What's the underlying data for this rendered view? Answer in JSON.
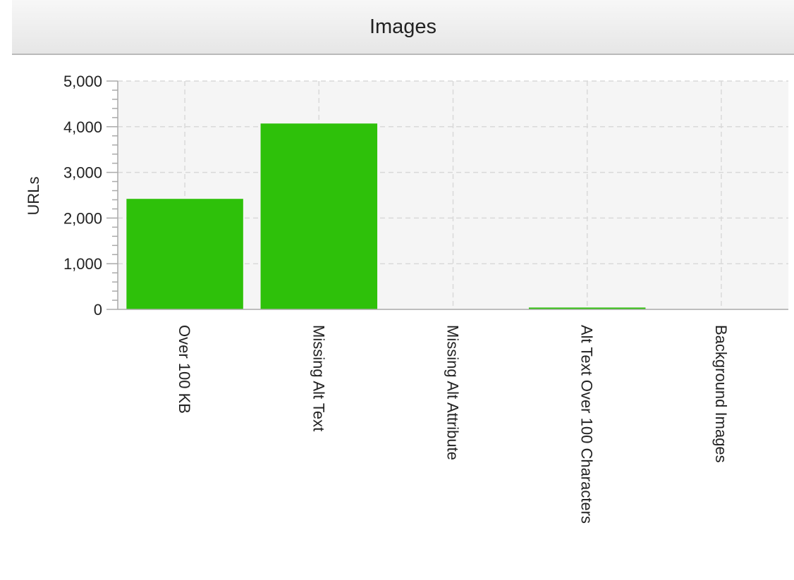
{
  "panel": {
    "title": "Images"
  },
  "chart_data": {
    "type": "bar",
    "title": "Images",
    "xlabel": "",
    "ylabel": "URLs",
    "categories": [
      "Over 100 KB",
      "Missing Alt Text",
      "Missing Alt Attribute",
      "Alt Text Over 100 Characters",
      "Background Images"
    ],
    "values": [
      2420,
      4070,
      0,
      40,
      0
    ],
    "ylim": [
      0,
      5000
    ],
    "yticks": [
      0,
      1000,
      2000,
      3000,
      4000,
      5000
    ],
    "ytick_labels": [
      "0",
      "1,000",
      "2,000",
      "3,000",
      "4,000",
      "5,000"
    ],
    "grid": true,
    "legend": "none",
    "colors": {
      "bar": "#2ec10a",
      "grid": "#d9d9d9",
      "plot_background": "#f5f5f5"
    }
  }
}
